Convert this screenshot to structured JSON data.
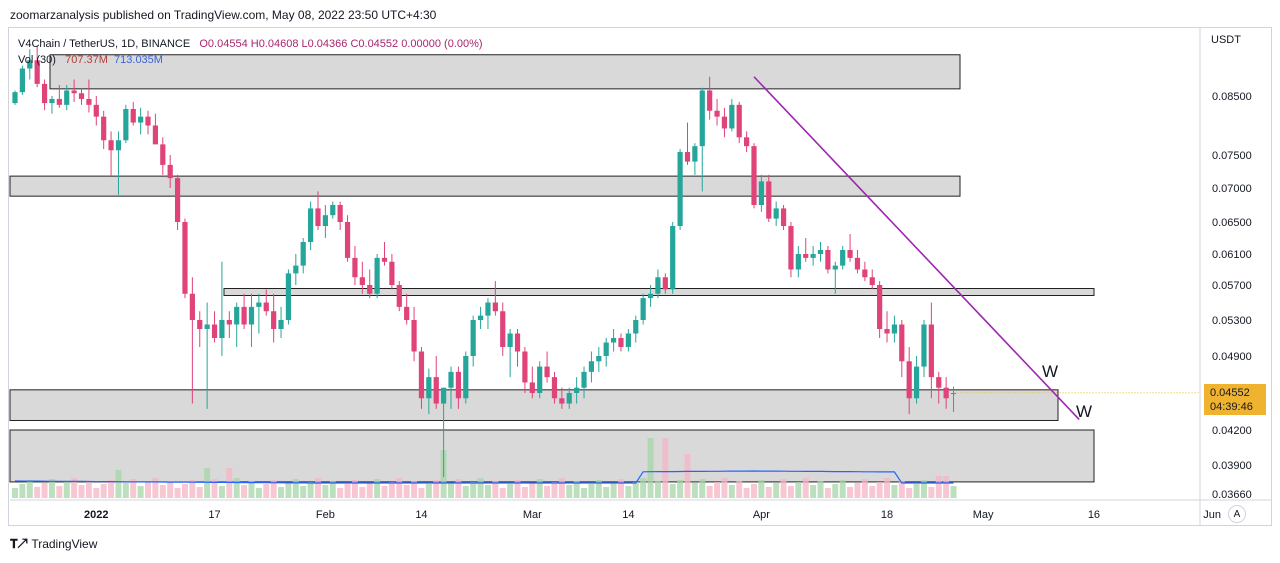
{
  "header": {
    "publish_text": "zoomarzanalysis published on TradingView.com, May 08, 2022 23:50 UTC+4:30"
  },
  "legend": {
    "symbol": "V4Chain / TetherUS, 1D, BINANCE",
    "ohlc": "O0.04554  H0.04608  L0.04366  C0.04552  0.00000 (0.00%)",
    "vol_label": "Vol (30)",
    "vol_value_1": "707.37M",
    "vol_value_2": "713.035M"
  },
  "price_axis": {
    "currency": "USDT",
    "ticks": [
      "0.08500",
      "0.07500",
      "0.07000",
      "0.06500",
      "0.06100",
      "0.05700",
      "0.05300",
      "0.04900",
      "0.04200",
      "0.03900",
      "0.03660"
    ]
  },
  "time_axis": {
    "ticks": [
      "2022",
      "17",
      "Feb",
      "14",
      "Mar",
      "14",
      "Apr",
      "18",
      "May",
      "16",
      "Jun"
    ]
  },
  "last_price": {
    "value": "0.04552",
    "countdown": "04:39:46"
  },
  "annotations": {
    "w1": "W",
    "w2": "W"
  },
  "auto_label": "A",
  "footer": {
    "brand": "TradingView"
  },
  "colors": {
    "up": "#26a69a",
    "down": "#e0427a",
    "trendline": "#9c27b0",
    "zone_fill": "#d9d9d9",
    "price_tag": "#efb32f",
    "volume_ma": "#2962ff"
  },
  "chart_data": {
    "type": "candlestick",
    "symbol": "V4Chain / TetherUS",
    "interval": "1D",
    "exchange": "BINANCE",
    "last": {
      "open": 0.04554,
      "high": 0.04608,
      "low": 0.04366,
      "close": 0.04552
    },
    "price_range": [
      0.0352,
      0.097
    ],
    "resistance_support_zones": [
      {
        "from": 0.0863,
        "to": 0.0925
      },
      {
        "from": 0.0688,
        "to": 0.0718
      },
      {
        "from": 0.0558,
        "to": 0.0566
      },
      {
        "from": 0.0429,
        "to": 0.0458
      },
      {
        "from": 0.0376,
        "to": 0.042
      }
    ],
    "trendline": [
      {
        "date": "2022-03-31",
        "price": 0.0885
      },
      {
        "date": "2022-05-14",
        "price": 0.043
      }
    ],
    "candles": [
      [
        0.0838,
        0.086,
        0.0835,
        0.0857
      ],
      [
        0.0857,
        0.0905,
        0.0852,
        0.09
      ],
      [
        0.09,
        0.0935,
        0.088,
        0.0915
      ],
      [
        0.0915,
        0.094,
        0.0866,
        0.0872
      ],
      [
        0.0872,
        0.088,
        0.0826,
        0.0838
      ],
      [
        0.0838,
        0.085,
        0.082,
        0.0845
      ],
      [
        0.0845,
        0.087,
        0.083,
        0.0835
      ],
      [
        0.0835,
        0.087,
        0.0826,
        0.086
      ],
      [
        0.086,
        0.088,
        0.084,
        0.0855
      ],
      [
        0.0855,
        0.0863,
        0.0835,
        0.0845
      ],
      [
        0.0845,
        0.088,
        0.0822,
        0.0835
      ],
      [
        0.0835,
        0.085,
        0.08,
        0.0815
      ],
      [
        0.0815,
        0.0825,
        0.076,
        0.0775
      ],
      [
        0.0775,
        0.079,
        0.0718,
        0.0758
      ],
      [
        0.0758,
        0.079,
        0.069,
        0.0775
      ],
      [
        0.0775,
        0.0835,
        0.077,
        0.0828
      ],
      [
        0.0828,
        0.084,
        0.08,
        0.0805
      ],
      [
        0.0805,
        0.083,
        0.0785,
        0.0815
      ],
      [
        0.0815,
        0.0825,
        0.0785,
        0.08
      ],
      [
        0.08,
        0.082,
        0.077,
        0.0768
      ],
      [
        0.0768,
        0.078,
        0.072,
        0.0735
      ],
      [
        0.0735,
        0.075,
        0.07,
        0.0715
      ],
      [
        0.0715,
        0.072,
        0.064,
        0.065
      ],
      [
        0.065,
        0.0655,
        0.0555,
        0.056
      ],
      [
        0.056,
        0.058,
        0.0445,
        0.053
      ],
      [
        0.053,
        0.054,
        0.05,
        0.052
      ],
      [
        0.052,
        0.055,
        0.044,
        0.0525
      ],
      [
        0.0525,
        0.054,
        0.0505,
        0.051
      ],
      [
        0.051,
        0.06,
        0.049,
        0.053
      ],
      [
        0.053,
        0.054,
        0.051,
        0.0525
      ],
      [
        0.0525,
        0.055,
        0.05,
        0.0545
      ],
      [
        0.0545,
        0.056,
        0.052,
        0.0525
      ],
      [
        0.0525,
        0.056,
        0.05,
        0.0545
      ],
      [
        0.0545,
        0.056,
        0.0515,
        0.055
      ],
      [
        0.055,
        0.0565,
        0.0535,
        0.054
      ],
      [
        0.054,
        0.056,
        0.0505,
        0.052
      ],
      [
        0.052,
        0.0545,
        0.051,
        0.053
      ],
      [
        0.053,
        0.059,
        0.0525,
        0.0585
      ],
      [
        0.0585,
        0.061,
        0.057,
        0.0595
      ],
      [
        0.0595,
        0.063,
        0.0585,
        0.0625
      ],
      [
        0.0625,
        0.068,
        0.0615,
        0.067
      ],
      [
        0.067,
        0.0695,
        0.064,
        0.0645
      ],
      [
        0.0645,
        0.0675,
        0.063,
        0.066
      ],
      [
        0.066,
        0.068,
        0.0655,
        0.0675
      ],
      [
        0.0675,
        0.068,
        0.064,
        0.065
      ],
      [
        0.065,
        0.066,
        0.06,
        0.0605
      ],
      [
        0.0605,
        0.062,
        0.057,
        0.058
      ],
      [
        0.058,
        0.06,
        0.056,
        0.057
      ],
      [
        0.057,
        0.059,
        0.0555,
        0.056
      ],
      [
        0.056,
        0.061,
        0.0555,
        0.0605
      ],
      [
        0.0605,
        0.0625,
        0.0595,
        0.06
      ],
      [
        0.06,
        0.061,
        0.0565,
        0.057
      ],
      [
        0.057,
        0.0575,
        0.054,
        0.0545
      ],
      [
        0.0545,
        0.056,
        0.0525,
        0.053
      ],
      [
        0.053,
        0.0545,
        0.0485,
        0.0495
      ],
      [
        0.0495,
        0.05,
        0.044,
        0.045
      ],
      [
        0.045,
        0.0478,
        0.0435,
        0.047
      ],
      [
        0.047,
        0.049,
        0.044,
        0.0445
      ],
      [
        0.0445,
        0.046,
        0.038,
        0.046
      ],
      [
        0.046,
        0.048,
        0.044,
        0.0475
      ],
      [
        0.0475,
        0.048,
        0.044,
        0.045
      ],
      [
        0.045,
        0.0495,
        0.0445,
        0.049
      ],
      [
        0.049,
        0.0535,
        0.048,
        0.053
      ],
      [
        0.053,
        0.0545,
        0.052,
        0.0535
      ],
      [
        0.0535,
        0.0555,
        0.052,
        0.055
      ],
      [
        0.055,
        0.0575,
        0.0535,
        0.054
      ],
      [
        0.054,
        0.055,
        0.049,
        0.05
      ],
      [
        0.05,
        0.052,
        0.047,
        0.0515
      ],
      [
        0.0515,
        0.052,
        0.048,
        0.0495
      ],
      [
        0.0495,
        0.05,
        0.0455,
        0.0465
      ],
      [
        0.0465,
        0.048,
        0.045,
        0.0455
      ],
      [
        0.0455,
        0.0485,
        0.045,
        0.048
      ],
      [
        0.048,
        0.0495,
        0.0465,
        0.047
      ],
      [
        0.047,
        0.0475,
        0.0445,
        0.045
      ],
      [
        0.045,
        0.046,
        0.044,
        0.0445
      ],
      [
        0.0445,
        0.046,
        0.044,
        0.0455
      ],
      [
        0.0455,
        0.047,
        0.0445,
        0.046
      ],
      [
        0.046,
        0.048,
        0.045,
        0.0475
      ],
      [
        0.0475,
        0.0495,
        0.0465,
        0.0485
      ],
      [
        0.0485,
        0.05,
        0.0475,
        0.049
      ],
      [
        0.049,
        0.051,
        0.048,
        0.0505
      ],
      [
        0.0505,
        0.052,
        0.0495,
        0.051
      ],
      [
        0.051,
        0.0515,
        0.0495,
        0.05
      ],
      [
        0.05,
        0.052,
        0.0495,
        0.0515
      ],
      [
        0.0515,
        0.0535,
        0.0505,
        0.053
      ],
      [
        0.053,
        0.056,
        0.0525,
        0.0555
      ],
      [
        0.0555,
        0.057,
        0.0545,
        0.056
      ],
      [
        0.056,
        0.059,
        0.0555,
        0.058
      ],
      [
        0.058,
        0.0585,
        0.056,
        0.0565
      ],
      [
        0.0565,
        0.065,
        0.056,
        0.0645
      ],
      [
        0.0645,
        0.076,
        0.064,
        0.0755
      ],
      [
        0.0755,
        0.0805,
        0.0735,
        0.074
      ],
      [
        0.074,
        0.077,
        0.072,
        0.0765
      ],
      [
        0.0765,
        0.0865,
        0.0695,
        0.086
      ],
      [
        0.086,
        0.0885,
        0.081,
        0.0825
      ],
      [
        0.0825,
        0.0845,
        0.08,
        0.0815
      ],
      [
        0.0815,
        0.083,
        0.078,
        0.0795
      ],
      [
        0.0795,
        0.0845,
        0.079,
        0.0835
      ],
      [
        0.0835,
        0.084,
        0.077,
        0.078
      ],
      [
        0.078,
        0.079,
        0.0755,
        0.0765
      ],
      [
        0.0765,
        0.077,
        0.067,
        0.0675
      ],
      [
        0.0675,
        0.072,
        0.0665,
        0.071
      ],
      [
        0.071,
        0.072,
        0.065,
        0.0655
      ],
      [
        0.0655,
        0.068,
        0.0645,
        0.067
      ],
      [
        0.067,
        0.0675,
        0.064,
        0.0645
      ],
      [
        0.0645,
        0.065,
        0.058,
        0.059
      ],
      [
        0.059,
        0.062,
        0.058,
        0.061
      ],
      [
        0.061,
        0.063,
        0.06,
        0.0605
      ],
      [
        0.0605,
        0.062,
        0.0595,
        0.061
      ],
      [
        0.061,
        0.0625,
        0.06,
        0.0615
      ],
      [
        0.0615,
        0.062,
        0.0585,
        0.059
      ],
      [
        0.059,
        0.06,
        0.056,
        0.0595
      ],
      [
        0.0595,
        0.062,
        0.059,
        0.0615
      ],
      [
        0.0615,
        0.0635,
        0.06,
        0.0605
      ],
      [
        0.0605,
        0.0615,
        0.0585,
        0.059
      ],
      [
        0.059,
        0.06,
        0.0575,
        0.058
      ],
      [
        0.058,
        0.059,
        0.0565,
        0.057
      ],
      [
        0.057,
        0.0575,
        0.051,
        0.052
      ],
      [
        0.052,
        0.054,
        0.0505,
        0.0515
      ],
      [
        0.0515,
        0.0535,
        0.0505,
        0.0525
      ],
      [
        0.0525,
        0.053,
        0.047,
        0.0485
      ],
      [
        0.0485,
        0.05,
        0.0435,
        0.045
      ],
      [
        0.045,
        0.049,
        0.0445,
        0.048
      ],
      [
        0.048,
        0.053,
        0.047,
        0.0525
      ],
      [
        0.0525,
        0.055,
        0.045,
        0.047
      ],
      [
        0.047,
        0.0475,
        0.0445,
        0.046
      ],
      [
        0.046,
        0.047,
        0.044,
        0.045
      ],
      [
        0.0454,
        0.0461,
        0.0437,
        0.0455
      ]
    ],
    "volume_ma": "Vol (30)"
  }
}
